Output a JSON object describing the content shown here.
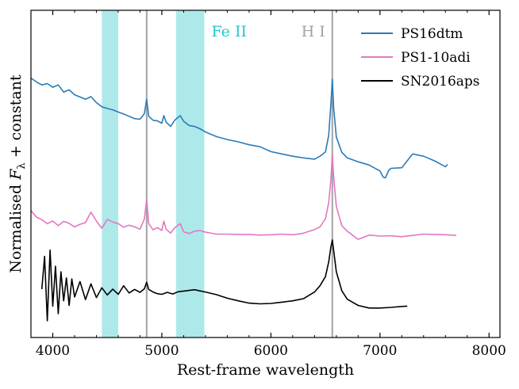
{
  "chart_data": {
    "type": "line",
    "title": "",
    "xlabel": "Rest-frame wavelength",
    "ylabel": {
      "main": "Normalised ",
      "symbol": "F",
      "subscript": "λ",
      "suffix": " + constant"
    },
    "xlim": [
      3800,
      8100
    ],
    "ylim": [
      0,
      1
    ],
    "x_ticks": [
      4000,
      5000,
      6000,
      7000,
      8000
    ],
    "y_ticks": [],
    "grid": false,
    "legend_position": "top-right",
    "shaded_bands": [
      {
        "label": "Fe II",
        "show_label": false,
        "x0": 4450,
        "x1": 4600,
        "color": "#aee9ea"
      },
      {
        "label": "Fe II",
        "show_label": true,
        "x0": 5130,
        "x1": 5390,
        "color": "#aee9ea"
      }
    ],
    "band_label_color": "#1ec8cc",
    "vertical_lines": [
      {
        "label": "",
        "x": 4861,
        "color": "#a3a3a3"
      },
      {
        "label": "H I",
        "x": 6563,
        "color": "#a3a3a3"
      }
    ],
    "series": [
      {
        "name": "PS16dtm",
        "color": "#2b7bb9",
        "x": [
          3800,
          3850,
          3900,
          3950,
          4000,
          4050,
          4100,
          4150,
          4200,
          4250,
          4300,
          4350,
          4400,
          4450,
          4500,
          4550,
          4600,
          4650,
          4700,
          4750,
          4800,
          4840,
          4861,
          4880,
          4920,
          4960,
          5000,
          5018,
          5040,
          5080,
          5120,
          5169,
          5200,
          5250,
          5300,
          5350,
          5400,
          5500,
          5600,
          5700,
          5800,
          5900,
          6000,
          6100,
          6200,
          6300,
          6400,
          6450,
          6500,
          6530,
          6550,
          6563,
          6575,
          6600,
          6650,
          6700,
          6800,
          6900,
          7000,
          7030,
          7050,
          7080,
          7100,
          7200,
          7300,
          7400,
          7500,
          7600,
          7620
        ],
        "values": [
          0.793,
          0.781,
          0.772,
          0.776,
          0.765,
          0.772,
          0.75,
          0.757,
          0.742,
          0.735,
          0.728,
          0.736,
          0.718,
          0.705,
          0.7,
          0.696,
          0.689,
          0.683,
          0.676,
          0.669,
          0.667,
          0.684,
          0.728,
          0.676,
          0.664,
          0.662,
          0.655,
          0.678,
          0.658,
          0.645,
          0.665,
          0.678,
          0.661,
          0.648,
          0.645,
          0.638,
          0.628,
          0.614,
          0.605,
          0.598,
          0.589,
          0.583,
          0.568,
          0.561,
          0.554,
          0.549,
          0.545,
          0.554,
          0.567,
          0.618,
          0.715,
          0.789,
          0.703,
          0.613,
          0.566,
          0.549,
          0.537,
          0.527,
          0.509,
          0.49,
          0.488,
          0.511,
          0.517,
          0.519,
          0.561,
          0.554,
          0.54,
          0.522,
          0.529
        ]
      },
      {
        "name": "PS1-10adi",
        "color": "#e377c2",
        "x": [
          3800,
          3850,
          3900,
          3950,
          4000,
          4050,
          4100,
          4150,
          4200,
          4250,
          4300,
          4350,
          4400,
          4450,
          4500,
          4550,
          4600,
          4650,
          4700,
          4750,
          4800,
          4840,
          4861,
          4880,
          4920,
          4960,
          5000,
          5018,
          5040,
          5080,
          5120,
          5169,
          5200,
          5250,
          5300,
          5350,
          5400,
          5500,
          5600,
          5700,
          5800,
          5900,
          6000,
          6100,
          6200,
          6300,
          6400,
          6450,
          6500,
          6530,
          6550,
          6563,
          6575,
          6600,
          6650,
          6700,
          6800,
          6900,
          7000,
          7100,
          7200,
          7300,
          7400,
          7500,
          7600,
          7700
        ],
        "values": [
          0.388,
          0.368,
          0.36,
          0.348,
          0.356,
          0.342,
          0.355,
          0.349,
          0.338,
          0.346,
          0.351,
          0.383,
          0.356,
          0.334,
          0.361,
          0.353,
          0.348,
          0.337,
          0.343,
          0.338,
          0.331,
          0.362,
          0.422,
          0.348,
          0.329,
          0.336,
          0.327,
          0.356,
          0.331,
          0.319,
          0.336,
          0.348,
          0.323,
          0.318,
          0.325,
          0.327,
          0.322,
          0.316,
          0.316,
          0.315,
          0.315,
          0.313,
          0.314,
          0.316,
          0.314,
          0.319,
          0.33,
          0.338,
          0.363,
          0.412,
          0.483,
          0.561,
          0.492,
          0.401,
          0.342,
          0.325,
          0.3,
          0.313,
          0.31,
          0.311,
          0.308,
          0.312,
          0.316,
          0.315,
          0.314,
          0.312
        ]
      },
      {
        "name": "SN2016aps",
        "color": "#000000",
        "x": [
          3900,
          3925,
          3950,
          3975,
          4000,
          4025,
          4050,
          4075,
          4100,
          4125,
          4150,
          4175,
          4200,
          4250,
          4300,
          4350,
          4400,
          4450,
          4500,
          4550,
          4600,
          4650,
          4700,
          4750,
          4800,
          4840,
          4861,
          4880,
          4920,
          4960,
          5000,
          5050,
          5100,
          5150,
          5200,
          5300,
          5400,
          5500,
          5600,
          5700,
          5800,
          5900,
          6000,
          6100,
          6200,
          6300,
          6400,
          6450,
          6500,
          6530,
          6550,
          6563,
          6575,
          6600,
          6650,
          6700,
          6800,
          6900,
          7000,
          7100,
          7200,
          7250
        ],
        "values": [
          0.148,
          0.248,
          0.051,
          0.267,
          0.096,
          0.218,
          0.073,
          0.201,
          0.112,
          0.182,
          0.098,
          0.179,
          0.124,
          0.171,
          0.116,
          0.164,
          0.122,
          0.152,
          0.13,
          0.148,
          0.132,
          0.158,
          0.136,
          0.147,
          0.138,
          0.149,
          0.169,
          0.147,
          0.139,
          0.134,
          0.132,
          0.138,
          0.133,
          0.14,
          0.142,
          0.146,
          0.139,
          0.131,
          0.12,
          0.112,
          0.105,
          0.103,
          0.104,
          0.108,
          0.112,
          0.119,
          0.139,
          0.158,
          0.186,
          0.231,
          0.277,
          0.298,
          0.267,
          0.201,
          0.143,
          0.117,
          0.098,
          0.09,
          0.09,
          0.092,
          0.095,
          0.096
        ]
      }
    ]
  }
}
